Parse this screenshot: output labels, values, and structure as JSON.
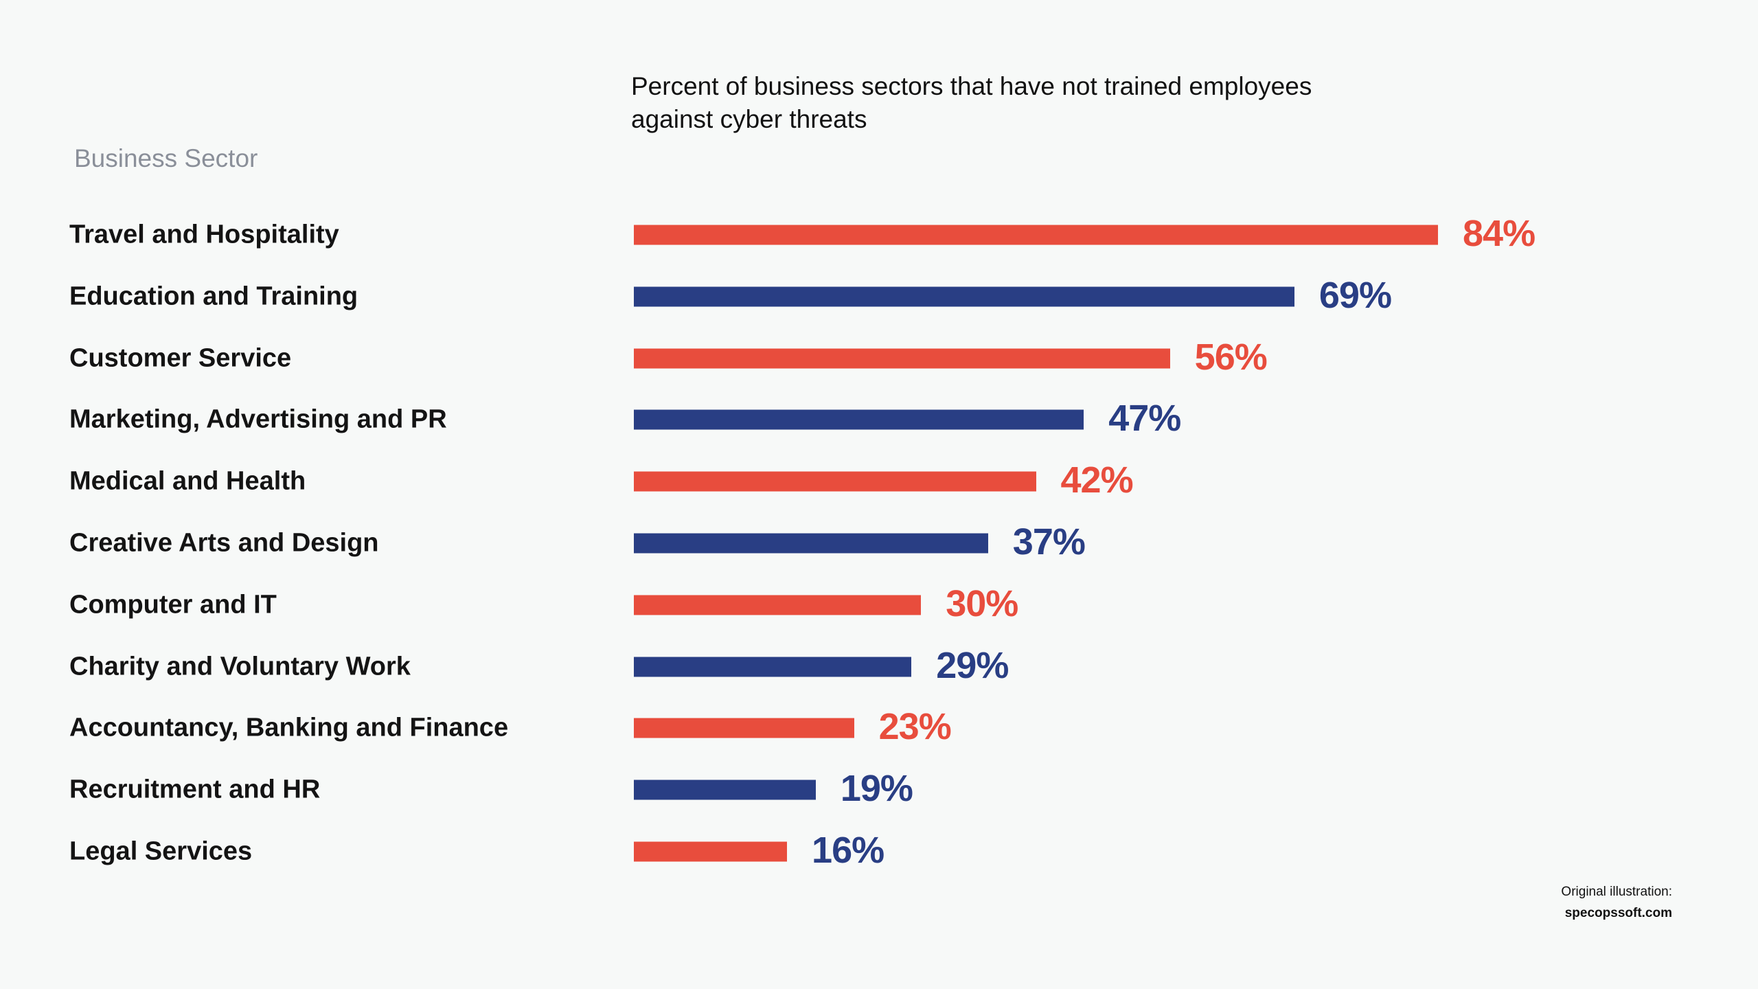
{
  "chart_data": {
    "type": "bar",
    "orientation": "horizontal",
    "title": "Percent of business sectors that have not trained employees against cyber threats",
    "title_lines": [
      "Percent of business sectors that have not trained employees",
      "against cyber threats"
    ],
    "ylabel": "Business Sector",
    "xlabel": "",
    "xlim": [
      0,
      100
    ],
    "grid": false,
    "categories": [
      "Travel and Hospitality",
      "Education and Training",
      "Customer Service",
      "Marketing, Advertising and PR",
      "Medical and Health",
      "Creative Arts and Design",
      "Computer and IT",
      "Charity and Voluntary Work",
      "Accountancy, Banking and Finance",
      "Recruitment and HR",
      "Legal Services"
    ],
    "values": [
      84,
      69,
      56,
      47,
      42,
      37,
      30,
      29,
      23,
      19,
      16
    ],
    "value_labels": [
      "84%",
      "69%",
      "56%",
      "47%",
      "42%",
      "37%",
      "30%",
      "29%",
      "23%",
      "19%",
      "16%"
    ],
    "colors": [
      "#e84d3d",
      "#293e84",
      "#e84d3d",
      "#293e84",
      "#e84d3d",
      "#293e84",
      "#e84d3d",
      "#293e84",
      "#e84d3d",
      "#293e84",
      "#e84d3d"
    ],
    "label_colors": [
      "#e84d3d",
      "#293e84",
      "#e84d3d",
      "#293e84",
      "#e84d3d",
      "#293e84",
      "#e84d3d",
      "#293e84",
      "#e84d3d",
      "#293e84",
      "#293e84"
    ]
  },
  "credit": {
    "line1": "Original illustration:",
    "line2": "specopssoft.com"
  },
  "background": "#f7f9f8"
}
